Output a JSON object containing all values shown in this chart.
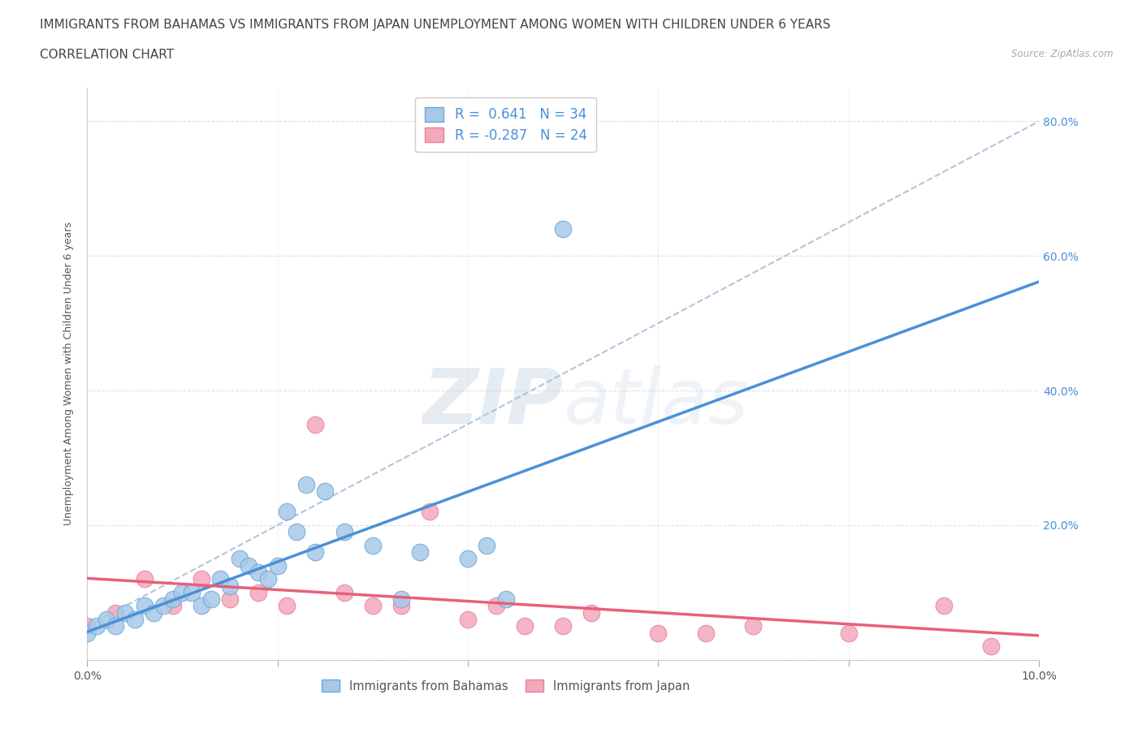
{
  "title_line1": "IMMIGRANTS FROM BAHAMAS VS IMMIGRANTS FROM JAPAN UNEMPLOYMENT AMONG WOMEN WITH CHILDREN UNDER 6 YEARS",
  "title_line2": "CORRELATION CHART",
  "source": "Source: ZipAtlas.com",
  "ylabel": "Unemployment Among Women with Children Under 6 years",
  "watermark": "ZIPatlas",
  "xlim": [
    0.0,
    0.1
  ],
  "ylim": [
    0.0,
    0.85
  ],
  "x_ticks": [
    0.0,
    0.02,
    0.04,
    0.06,
    0.08,
    0.1
  ],
  "y_ticks": [
    0.0,
    0.2,
    0.4,
    0.6,
    0.8
  ],
  "bahamas_color": "#a8c8e8",
  "japan_color": "#f4a8bc",
  "bahamas_edge_color": "#6aaad4",
  "japan_edge_color": "#e8829a",
  "bahamas_line_color": "#4a90d9",
  "japan_line_color": "#e8607a",
  "dash_line_color": "#a8c0d8",
  "R_bahamas": 0.641,
  "N_bahamas": 34,
  "R_japan": -0.287,
  "N_japan": 24,
  "bahamas_x": [
    0.0,
    0.001,
    0.002,
    0.003,
    0.004,
    0.005,
    0.006,
    0.007,
    0.008,
    0.009,
    0.01,
    0.011,
    0.012,
    0.013,
    0.014,
    0.015,
    0.016,
    0.017,
    0.018,
    0.019,
    0.02,
    0.021,
    0.022,
    0.023,
    0.024,
    0.025,
    0.027,
    0.03,
    0.033,
    0.035,
    0.04,
    0.042,
    0.044,
    0.05
  ],
  "bahamas_y": [
    0.04,
    0.05,
    0.06,
    0.05,
    0.07,
    0.06,
    0.08,
    0.07,
    0.08,
    0.09,
    0.1,
    0.1,
    0.08,
    0.09,
    0.12,
    0.11,
    0.15,
    0.14,
    0.13,
    0.12,
    0.14,
    0.22,
    0.19,
    0.26,
    0.16,
    0.25,
    0.19,
    0.17,
    0.09,
    0.16,
    0.15,
    0.17,
    0.09,
    0.64
  ],
  "japan_x": [
    0.0,
    0.003,
    0.006,
    0.009,
    0.012,
    0.015,
    0.018,
    0.021,
    0.024,
    0.027,
    0.03,
    0.033,
    0.036,
    0.04,
    0.043,
    0.046,
    0.05,
    0.053,
    0.06,
    0.065,
    0.07,
    0.08,
    0.09,
    0.095
  ],
  "japan_y": [
    0.05,
    0.07,
    0.12,
    0.08,
    0.12,
    0.09,
    0.1,
    0.08,
    0.35,
    0.1,
    0.08,
    0.08,
    0.22,
    0.06,
    0.08,
    0.05,
    0.05,
    0.07,
    0.04,
    0.04,
    0.05,
    0.04,
    0.08,
    0.02
  ],
  "grid_color": "#d8d8d8",
  "background_color": "#ffffff",
  "title_fontsize": 11,
  "label_fontsize": 9,
  "tick_fontsize": 10
}
